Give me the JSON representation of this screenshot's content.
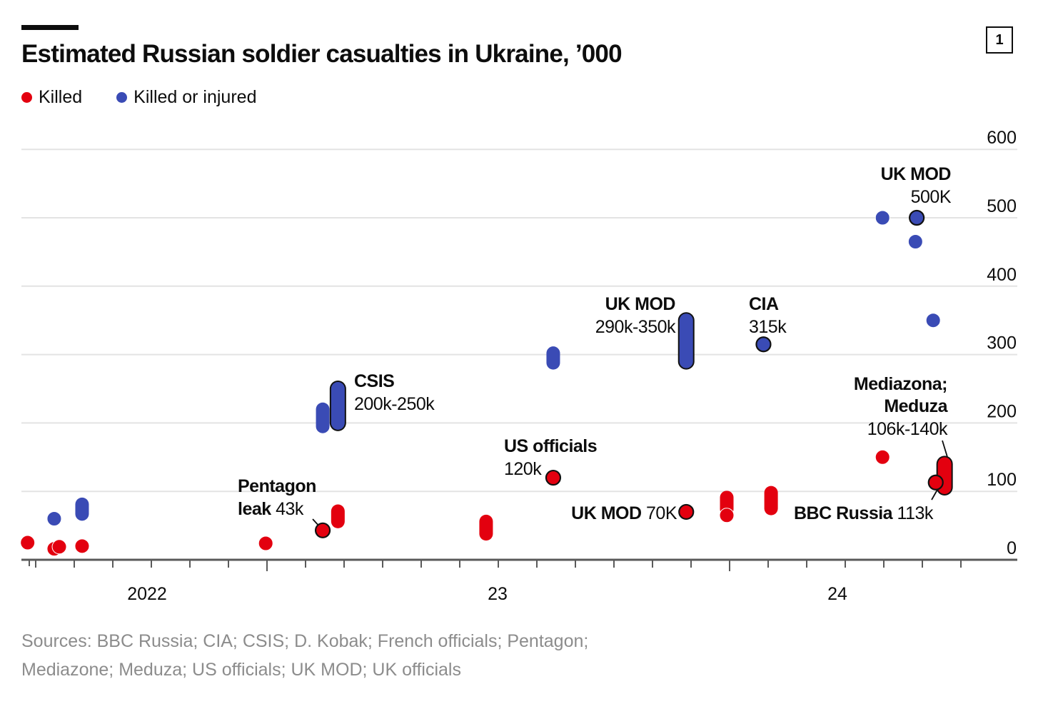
{
  "badge": "1",
  "title": "Estimated Russian soldier casualties in Ukraine, ’000",
  "legend": [
    {
      "label": "Killed",
      "color": "#e3000f"
    },
    {
      "label": "Killed or injured",
      "color": "#3a4bb5"
    }
  ],
  "sources": [
    "Sources: BBC Russia; CIA; CSIS; D. Kobak; French officials; Pentagon;",
    "Mediazone; Meduza; US officials; UK MOD; UK officials"
  ],
  "chart_data": {
    "type": "scatter",
    "title": "Estimated Russian soldier casualties in Ukraine, ’000",
    "ylim": [
      0,
      600
    ],
    "yticks": [
      "0",
      "100",
      "200",
      "300",
      "400",
      "500",
      "600"
    ],
    "xticks": [
      "2022",
      "23",
      "24"
    ],
    "grid": true,
    "legend_position": "top-left",
    "series": [
      {
        "name": "Killed",
        "color": "#e3000f",
        "points": [
          {
            "date": "2022-06-26",
            "value": 25
          },
          {
            "date": "2022-07-17",
            "value": 16
          },
          {
            "date": "2022-07-21",
            "value": 19
          },
          {
            "date": "2022-08-08",
            "value": 20
          },
          {
            "date": "2022-12-31",
            "value": 24
          },
          {
            "date": "2023-02-14",
            "value": 43,
            "highlight": true
          },
          {
            "date": "2023-02-26",
            "low": 56,
            "high": 71
          },
          {
            "date": "2023-06-23",
            "low": 38,
            "high": 56
          },
          {
            "date": "2023-08-15",
            "value": 120,
            "highlight": true
          },
          {
            "date": "2023-11-28",
            "value": 70,
            "highlight": true
          },
          {
            "date": "2023-12-30",
            "low": 74,
            "high": 91
          },
          {
            "date": "2023-12-30",
            "value": 65
          },
          {
            "date": "2024-02-03",
            "low": 75,
            "high": 98
          },
          {
            "date": "2024-05-01",
            "value": 150
          },
          {
            "date": "2024-06-19",
            "low": 106,
            "high": 140,
            "highlight": true
          },
          {
            "date": "2024-06-12",
            "value": 113,
            "highlight": true
          }
        ]
      },
      {
        "name": "Killed or injured",
        "color": "#3a4bb5",
        "points": [
          {
            "date": "2022-07-17",
            "value": 60
          },
          {
            "date": "2022-08-08",
            "low": 67,
            "high": 81
          },
          {
            "date": "2023-02-14",
            "low": 195,
            "high": 220
          },
          {
            "date": "2023-02-26",
            "low": 200,
            "high": 250,
            "highlight": true
          },
          {
            "date": "2023-08-15",
            "low": 288,
            "high": 302
          },
          {
            "date": "2023-11-28",
            "low": 290,
            "high": 350,
            "highlight": true
          },
          {
            "date": "2024-01-28",
            "value": 315,
            "highlight": true
          },
          {
            "date": "2024-05-01",
            "value": 500
          },
          {
            "date": "2024-05-28",
            "value": 500,
            "highlight": true
          },
          {
            "date": "2024-05-27",
            "value": 465
          },
          {
            "date": "2024-06-10",
            "value": 350
          }
        ]
      }
    ],
    "annotations": [
      {
        "bold": "CSIS",
        "value": "200k-250k"
      },
      {
        "bold": "UK MOD",
        "value": "290k-350k"
      },
      {
        "bold": "CIA",
        "value": "315k"
      },
      {
        "bold": "US officials",
        "value": "120k"
      },
      {
        "bold": "Pentagon",
        "bold2": "leak",
        "value": "43k"
      },
      {
        "bold": "UK MOD",
        "value": "70K"
      },
      {
        "bold": "BBC Russia",
        "value": "113k"
      },
      {
        "bold": "Mediazona;",
        "bold2": "Meduza",
        "value": "106k-140k"
      },
      {
        "bold": "UK MOD",
        "value": "500K"
      }
    ]
  }
}
